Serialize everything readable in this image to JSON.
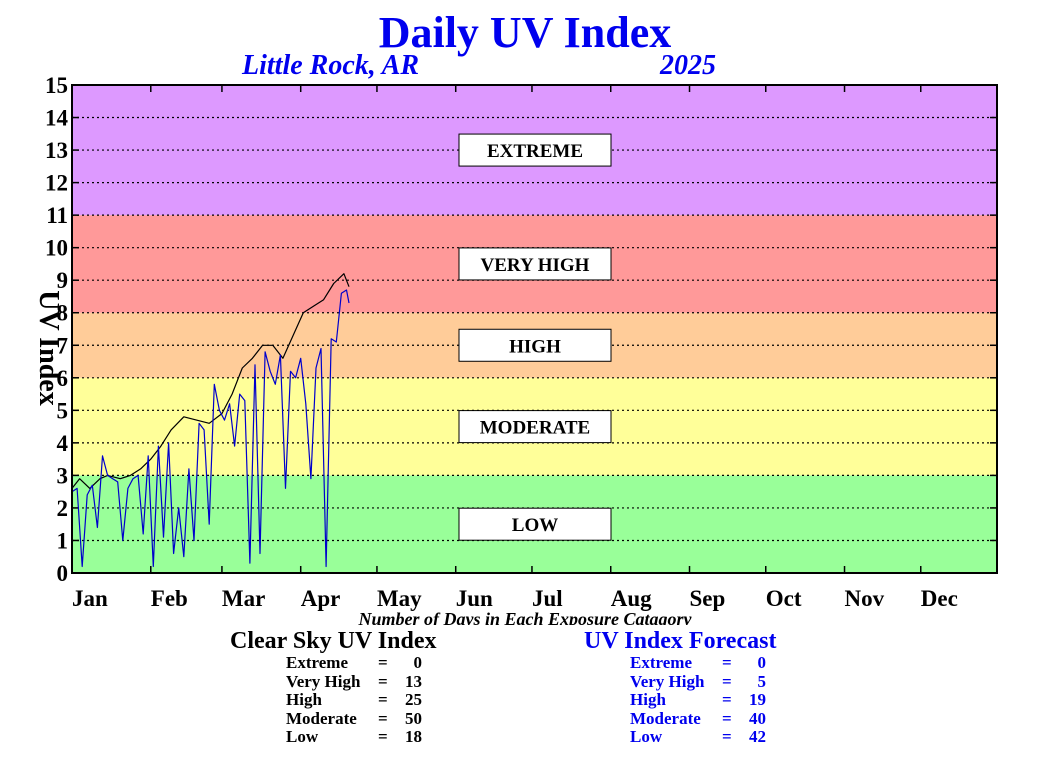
{
  "title": "Daily UV Index",
  "location": "Little Rock, AR",
  "year": "2025",
  "chart_data": {
    "type": "line",
    "ylabel": "UV Index",
    "xlabel": "Number of Days in Each Exposure Catagory",
    "ylim": [
      0,
      15
    ],
    "xlim": [
      1,
      365
    ],
    "yticks": [
      0,
      1,
      2,
      3,
      4,
      5,
      6,
      7,
      8,
      9,
      10,
      11,
      12,
      13,
      14,
      15
    ],
    "months": [
      "Jan",
      "Feb",
      "Mar",
      "Apr",
      "May",
      "Jun",
      "Jul",
      "Aug",
      "Sep",
      "Oct",
      "Nov",
      "Dec"
    ],
    "month_start_days": [
      1,
      32,
      60,
      91,
      121,
      152,
      182,
      213,
      244,
      274,
      305,
      335
    ],
    "grid": true,
    "categories": [
      {
        "label": "LOW",
        "range": [
          0,
          3
        ],
        "color": "#99ff99"
      },
      {
        "label": "MODERATE",
        "range": [
          3,
          6
        ],
        "color": "#ffff99"
      },
      {
        "label": "HIGH",
        "range": [
          6,
          8
        ],
        "color": "#ffcc99"
      },
      {
        "label": "VERY HIGH",
        "range": [
          8,
          11
        ],
        "color": "#ff9999"
      },
      {
        "label": "EXTREME",
        "range": [
          11,
          15
        ],
        "color": "#dd99ff"
      }
    ],
    "series": [
      {
        "name": "Clear Sky UV Index",
        "color": "#000000",
        "x": [
          1,
          4,
          8,
          12,
          15,
          20,
          24,
          28,
          32,
          36,
          40,
          45,
          50,
          55,
          60,
          64,
          68,
          72,
          76,
          80,
          84,
          88,
          92,
          96,
          100,
          104,
          108,
          110
        ],
        "y": [
          2.6,
          2.9,
          2.6,
          2.9,
          3.0,
          2.9,
          3.0,
          3.2,
          3.5,
          3.9,
          4.4,
          4.8,
          4.7,
          4.6,
          4.9,
          5.5,
          6.3,
          6.6,
          7.0,
          7.0,
          6.6,
          7.3,
          8.0,
          8.2,
          8.4,
          8.9,
          9.2,
          8.8
        ]
      },
      {
        "name": "UV Index Forecast",
        "color": "#0000cc",
        "x": [
          1,
          3,
          5,
          7,
          9,
          11,
          13,
          15,
          17,
          19,
          21,
          23,
          25,
          27,
          29,
          31,
          33,
          35,
          37,
          39,
          41,
          43,
          45,
          47,
          49,
          51,
          53,
          55,
          57,
          59,
          61,
          63,
          65,
          67,
          69,
          71,
          73,
          75,
          77,
          79,
          81,
          83,
          85,
          87,
          89,
          91,
          93,
          95,
          97,
          99,
          101,
          103,
          105,
          107,
          109,
          110
        ],
        "y": [
          2.5,
          2.6,
          0.2,
          2.4,
          2.7,
          1.4,
          3.6,
          3.0,
          2.9,
          2.8,
          1.0,
          2.6,
          2.9,
          3.0,
          1.2,
          3.6,
          0.2,
          3.9,
          1.1,
          4.0,
          0.6,
          2.0,
          0.5,
          3.2,
          1.0,
          4.6,
          4.4,
          1.5,
          5.8,
          5.0,
          4.7,
          5.2,
          3.9,
          5.5,
          5.3,
          0.3,
          6.4,
          0.6,
          6.8,
          6.2,
          5.8,
          6.7,
          2.6,
          6.2,
          6.0,
          6.6,
          5.2,
          2.9,
          6.3,
          6.9,
          0.2,
          7.2,
          7.1,
          8.6,
          8.7,
          8.3
        ]
      }
    ]
  },
  "stats": {
    "clear_sky": {
      "title": "Clear Sky UV Index",
      "rows": [
        {
          "label": "Extreme",
          "value": "0"
        },
        {
          "label": "Very High",
          "value": "13"
        },
        {
          "label": "High",
          "value": "25"
        },
        {
          "label": "Moderate",
          "value": "50"
        },
        {
          "label": "Low",
          "value": "18"
        }
      ]
    },
    "forecast": {
      "title": "UV Index Forecast",
      "rows": [
        {
          "label": "Extreme",
          "value": "0"
        },
        {
          "label": "Very High",
          "value": "5"
        },
        {
          "label": "High",
          "value": "19"
        },
        {
          "label": "Moderate",
          "value": "40"
        },
        {
          "label": "Low",
          "value": "42"
        }
      ]
    }
  }
}
